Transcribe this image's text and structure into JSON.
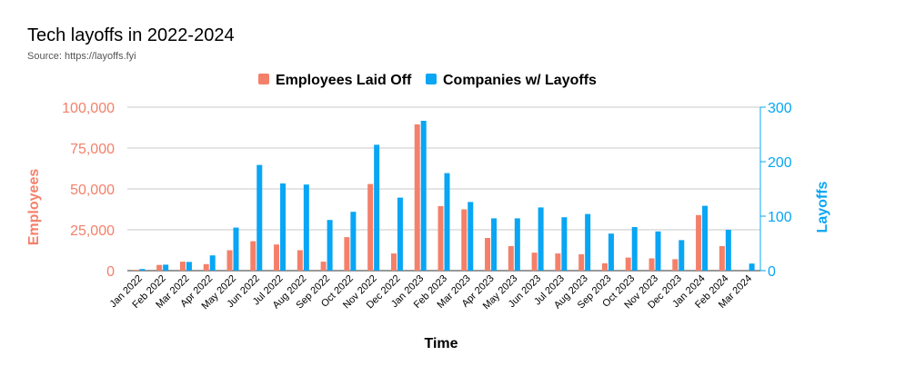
{
  "chart_data": {
    "type": "bar",
    "title": "Tech layoffs in 2022-2024",
    "subtitle": "Source: https://layoffs.fyi",
    "xlabel": "Time",
    "ylabel": "Employees",
    "y2label": "Layoffs",
    "ylim": [
      0,
      100000
    ],
    "y2lim": [
      0,
      300
    ],
    "yticks": [
      "0",
      "25,000",
      "50,000",
      "75,000",
      "100,000"
    ],
    "y2ticks": [
      "0",
      "100",
      "200",
      "300"
    ],
    "grid": true,
    "legend_position": "top-center",
    "categories": [
      "Jan 2022",
      "Feb 2022",
      "Mar 2022",
      "Apr 2022",
      "May 2022",
      "Jun 2022",
      "Jul 2022",
      "Aug 2022",
      "Sep 2022",
      "Oct 2022",
      "Nov 2022",
      "Dec 2022",
      "Jan 2023",
      "Feb 2023",
      "Mar 2023",
      "Apr 2023",
      "May 2023",
      "Jun 2023",
      "Jul 2023",
      "Aug 2023",
      "Sep 2023",
      "Oct 2023",
      "Nov 2023",
      "Dec 2023",
      "Jan 2024",
      "Feb 2024",
      "Mar 2024"
    ],
    "series": [
      {
        "name": "Employees Laid Off",
        "axis": "left",
        "color": "#f4806a",
        "values": [
          500,
          3500,
          5500,
          4000,
          12500,
          18000,
          16000,
          12500,
          5500,
          20500,
          53000,
          10500,
          89500,
          39500,
          37500,
          20000,
          15000,
          11000,
          10500,
          10000,
          4500,
          8000,
          7500,
          7000,
          34000,
          15000,
          0
        ]
      },
      {
        "name": "Companies w/ Layoffs",
        "axis": "right",
        "color": "#08a6f4",
        "values": [
          3,
          11,
          16,
          28,
          79,
          194,
          160,
          158,
          93,
          108,
          231,
          134,
          275,
          179,
          126,
          96,
          96,
          116,
          98,
          104,
          68,
          80,
          72,
          56,
          119,
          75,
          13
        ]
      }
    ],
    "colors": {
      "axis_left": "#f4806a",
      "axis_right": "#08a6f4",
      "grid": "#c8c8c8",
      "text": "#000000",
      "subtitle": "#555555"
    }
  }
}
